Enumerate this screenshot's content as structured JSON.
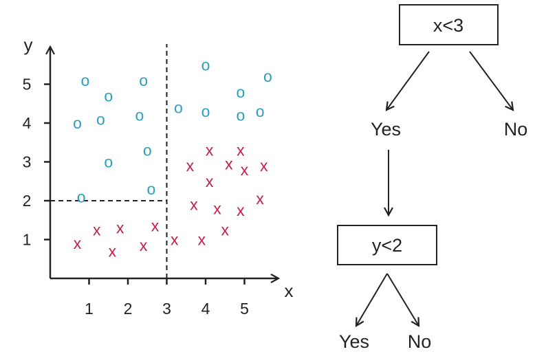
{
  "chart_data": {
    "type": "scatter",
    "xlabel": "x",
    "ylabel": "y",
    "xticks": [
      "1",
      "2",
      "3",
      "4",
      "5"
    ],
    "yticks": [
      "1",
      "2",
      "3",
      "4",
      "5"
    ],
    "xlim": [
      0,
      6
    ],
    "ylim": [
      0,
      6
    ],
    "grid": false,
    "series": [
      {
        "marker": "o",
        "color": "#2e9fbf",
        "points": [
          [
            0.9,
            5.1
          ],
          [
            1.5,
            4.7
          ],
          [
            2.4,
            5.1
          ],
          [
            4.0,
            5.5
          ],
          [
            5.6,
            5.2
          ],
          [
            4.9,
            4.8
          ],
          [
            0.7,
            4.0
          ],
          [
            1.3,
            4.1
          ],
          [
            2.3,
            4.2
          ],
          [
            3.3,
            4.4
          ],
          [
            4.0,
            4.3
          ],
          [
            4.9,
            4.2
          ],
          [
            5.4,
            4.3
          ],
          [
            1.5,
            3.0
          ],
          [
            2.5,
            3.3
          ],
          [
            0.8,
            2.1
          ],
          [
            2.6,
            2.3
          ]
        ]
      },
      {
        "marker": "x",
        "color": "#c41f47",
        "points": [
          [
            3.6,
            2.9
          ],
          [
            4.1,
            3.3
          ],
          [
            4.6,
            2.95
          ],
          [
            4.9,
            3.3
          ],
          [
            5.0,
            2.8
          ],
          [
            5.5,
            2.9
          ],
          [
            4.1,
            2.5
          ],
          [
            3.7,
            1.9
          ],
          [
            4.3,
            1.8
          ],
          [
            4.9,
            1.75
          ],
          [
            5.4,
            2.05
          ],
          [
            4.5,
            1.25
          ],
          [
            3.9,
            1.0
          ],
          [
            3.2,
            1.0
          ],
          [
            0.7,
            0.9
          ],
          [
            1.2,
            1.25
          ],
          [
            1.8,
            1.3
          ],
          [
            1.6,
            0.7
          ],
          [
            2.4,
            0.85
          ],
          [
            2.7,
            1.35
          ]
        ]
      }
    ],
    "splits": [
      {
        "axis": "x",
        "value": 3,
        "from": 0,
        "to": 6
      },
      {
        "axis": "y",
        "value": 2,
        "from": 0,
        "to": 3
      }
    ]
  },
  "tree": {
    "root": {
      "label": "x<3"
    },
    "root_yes": {
      "label": "Yes"
    },
    "root_no": {
      "label": "No"
    },
    "child": {
      "label": "y<2"
    },
    "child_yes": {
      "label": "Yes"
    },
    "child_no": {
      "label": "No"
    }
  }
}
